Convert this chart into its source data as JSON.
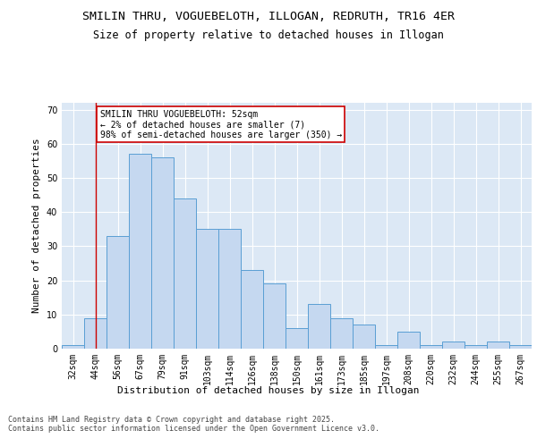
{
  "title1": "SMILIN THRU, VOGUEBELOTH, ILLOGAN, REDRUTH, TR16 4ER",
  "title2": "Size of property relative to detached houses in Illogan",
  "xlabel": "Distribution of detached houses by size in Illogan",
  "ylabel": "Number of detached properties",
  "categories": [
    "32sqm",
    "44sqm",
    "56sqm",
    "67sqm",
    "79sqm",
    "91sqm",
    "103sqm",
    "114sqm",
    "126sqm",
    "138sqm",
    "150sqm",
    "161sqm",
    "173sqm",
    "185sqm",
    "197sqm",
    "208sqm",
    "220sqm",
    "232sqm",
    "244sqm",
    "255sqm",
    "267sqm"
  ],
  "values": [
    1,
    9,
    33,
    57,
    56,
    44,
    35,
    35,
    23,
    19,
    6,
    13,
    9,
    7,
    1,
    5,
    1,
    2,
    1,
    2,
    1
  ],
  "bar_color": "#c5d8f0",
  "bar_edge_color": "#5a9fd4",
  "vline_x": 1,
  "vline_color": "#cc0000",
  "annotation_text": "SMILIN THRU VOGUEBELOTH: 52sqm\n← 2% of detached houses are smaller (7)\n98% of semi-detached houses are larger (350) →",
  "annotation_box_color": "#cc0000",
  "ylim": [
    0,
    72
  ],
  "yticks": [
    0,
    10,
    20,
    30,
    40,
    50,
    60,
    70
  ],
  "background_color": "#dce8f5",
  "footer_text": "Contains HM Land Registry data © Crown copyright and database right 2025.\nContains public sector information licensed under the Open Government Licence v3.0.",
  "title_fontsize": 9.5,
  "subtitle_fontsize": 8.5,
  "axis_label_fontsize": 8,
  "tick_fontsize": 7,
  "footer_fontsize": 6,
  "annotation_fontsize": 7
}
